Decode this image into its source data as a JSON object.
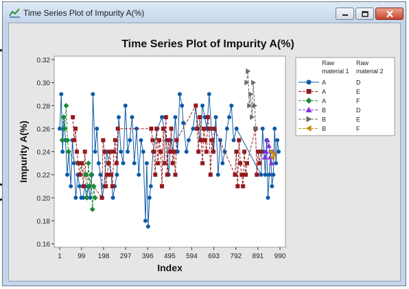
{
  "window": {
    "title": "Time Series Plot of Impurity A(%)",
    "icon": "minitab-graph-icon",
    "controls": {
      "minimize": "minimize-icon",
      "maximize": "maximize-icon",
      "close": "close-icon"
    }
  },
  "colors": {
    "titlebar": "#c4d5ea",
    "graph_bg": "#e6e6e6",
    "plot_bg": "#ffffff",
    "close_button": "#c9442c",
    "series_blue": "#0d5aa7",
    "series_red": "#941a1d",
    "series_green": "#1b8a35",
    "series_purple": "#8a2be2",
    "series_gray": "#6a6a6a",
    "series_orange": "#c58a12"
  },
  "chart_data": {
    "type": "line",
    "title": "Time Series Plot of Impurity A(%)",
    "xlabel": "Index",
    "ylabel": "Impurity A(%)",
    "xlim": [
      1,
      990
    ],
    "ylim": [
      0.16,
      0.32
    ],
    "x_ticks": [
      "1",
      "99",
      "198",
      "297",
      "396",
      "495",
      "594",
      "693",
      "792",
      "891",
      "990"
    ],
    "y_ticks": [
      "0.16",
      "0.18",
      "0.20",
      "0.22",
      "0.24",
      "0.26",
      "0.28",
      "0.30",
      "0.32"
    ],
    "grid": false,
    "legend_position": "right",
    "legend_header": [
      "Raw\nmaterial 1",
      "Raw\nmaterial 2"
    ],
    "legend": [
      {
        "material1": "A",
        "material2": "D",
        "marker": "circle",
        "color": "#0d5aa7"
      },
      {
        "material1": "A",
        "material2": "E",
        "marker": "square",
        "color": "#941a1d"
      },
      {
        "material1": "A",
        "material2": "F",
        "marker": "diamond",
        "color": "#1b8a35"
      },
      {
        "material1": "B",
        "material2": "D",
        "marker": "triangle-up",
        "color": "#8a2be2"
      },
      {
        "material1": "B",
        "material2": "E",
        "marker": "triangle-right",
        "color": "#6a6a6a"
      },
      {
        "material1": "B",
        "material2": "F",
        "marker": "triangle-left",
        "color": "#c58a12"
      }
    ],
    "series": [
      {
        "name": "A D",
        "color": "#0d5aa7",
        "marker": "circle",
        "dashed": false,
        "x": [
          1,
          8,
          14,
          20,
          27,
          35,
          42,
          51,
          58,
          65,
          73,
          82,
          90,
          98,
          106,
          114,
          122,
          130,
          138,
          146,
          150,
          160,
          168,
          176,
          184,
          192,
          200,
          212,
          222,
          232,
          240,
          248,
          258,
          266,
          276,
          286,
          296,
          306,
          316,
          326,
          336,
          346,
          356,
          366,
          376,
          386,
          392,
          398,
          404,
          410,
          420,
          440,
          460,
          480,
          490,
          500,
          510,
          520,
          530,
          540,
          550,
          556,
          570,
          580,
          600,
          612,
          622,
          632,
          642,
          652,
          662,
          672,
          682,
          692,
          702,
          712,
          722,
          732,
          742,
          752,
          762,
          772,
          782,
          795,
          905,
          912,
          918,
          924,
          930,
          936,
          942,
          948,
          954,
          960,
          966,
          972,
          978,
          984
        ],
        "y": [
          0.26,
          0.29,
          0.24,
          0.27,
          0.25,
          0.22,
          0.24,
          0.21,
          0.25,
          0.23,
          0.2,
          0.22,
          0.21,
          0.2,
          0.2,
          0.21,
          0.2,
          0.21,
          0.2,
          0.22,
          0.29,
          0.24,
          0.26,
          0.23,
          0.22,
          0.2,
          0.21,
          0.24,
          0.23,
          0.22,
          0.2,
          0.21,
          0.22,
          0.27,
          0.24,
          0.23,
          0.28,
          0.24,
          0.25,
          0.27,
          0.23,
          0.26,
          0.22,
          0.25,
          0.24,
          0.18,
          0.23,
          0.175,
          0.2,
          0.21,
          0.24,
          0.26,
          0.27,
          0.25,
          0.22,
          0.25,
          0.24,
          0.27,
          0.24,
          0.29,
          0.28,
          0.265,
          0.24,
          0.25,
          0.26,
          0.28,
          0.26,
          0.25,
          0.28,
          0.27,
          0.26,
          0.29,
          0.26,
          0.24,
          0.27,
          0.22,
          0.25,
          0.23,
          0.24,
          0.26,
          0.27,
          0.28,
          0.25,
          0.26,
          0.22,
          0.26,
          0.24,
          0.22,
          0.25,
          0.2,
          0.22,
          0.24,
          0.21,
          0.22,
          0.26,
          0.23,
          0.25,
          0.24
        ]
      },
      {
        "name": "A E",
        "color": "#941a1d",
        "marker": "square",
        "dashed": true,
        "x": [
          60,
          66,
          72,
          78,
          84,
          92,
          100,
          108,
          114,
          118,
          190,
          196,
          202,
          208,
          214,
          220,
          226,
          232,
          238,
          244,
          250,
          256,
          262,
          412,
          418,
          424,
          430,
          436,
          442,
          448,
          454,
          460,
          466,
          472,
          478,
          484,
          490,
          496,
          502,
          508,
          514,
          520,
          526,
          612,
          618,
          624,
          630,
          636,
          642,
          648,
          654,
          660,
          666,
          672,
          678,
          684,
          690,
          696,
          788,
          794,
          800,
          806,
          812,
          818,
          824,
          830,
          836,
          842,
          880,
          886,
          892,
          898,
          904
        ],
        "y": [
          0.27,
          0.25,
          0.26,
          0.24,
          0.23,
          0.22,
          0.23,
          0.21,
          0.24,
          0.22,
          0.2,
          0.25,
          0.24,
          0.21,
          0.22,
          0.23,
          0.24,
          0.22,
          0.21,
          0.24,
          0.25,
          0.23,
          0.26,
          0.26,
          0.25,
          0.24,
          0.22,
          0.26,
          0.23,
          0.25,
          0.24,
          0.21,
          0.26,
          0.23,
          0.27,
          0.22,
          0.25,
          0.24,
          0.26,
          0.23,
          0.24,
          0.22,
          0.25,
          0.28,
          0.26,
          0.24,
          0.27,
          0.25,
          0.23,
          0.26,
          0.25,
          0.24,
          0.27,
          0.26,
          0.22,
          0.25,
          0.24,
          0.26,
          0.22,
          0.24,
          0.21,
          0.25,
          0.23,
          0.22,
          0.21,
          0.24,
          0.22,
          0.23,
          0.26,
          0.22,
          0.24,
          0.23,
          0.24
        ]
      },
      {
        "name": "A F",
        "color": "#1b8a35",
        "marker": "diamond",
        "dashed": true,
        "x": [
          12,
          18,
          24,
          30,
          36,
          40,
          118,
          124,
          130,
          136,
          142,
          148,
          154,
          160
        ],
        "y": [
          0.25,
          0.27,
          0.26,
          0.28,
          0.25,
          0.24,
          0.22,
          0.2,
          0.23,
          0.21,
          0.22,
          0.19,
          0.21,
          0.2
        ]
      },
      {
        "name": "B D",
        "color": "#8a2be2",
        "marker": "triangle-up",
        "dashed": true,
        "x": [
          922,
          928,
          934,
          940,
          946,
          952,
          958
        ],
        "y": [
          0.235,
          0.24,
          0.25,
          0.245,
          0.235,
          0.23,
          0.24
        ]
      },
      {
        "name": "B E",
        "color": "#6a6a6a",
        "marker": "triangle-right",
        "dashed": true,
        "x": [
          840,
          846,
          852,
          858,
          864,
          870,
          876,
          882
        ],
        "y": [
          0.3,
          0.31,
          0.28,
          0.29,
          0.27,
          0.3,
          0.28,
          0.26
        ]
      },
      {
        "name": "B F",
        "color": "#c58a12",
        "marker": "triangle-left",
        "dashed": true,
        "x": [
          950,
          956,
          962
        ],
        "y": [
          0.24,
          0.235,
          0.238
        ]
      }
    ]
  }
}
